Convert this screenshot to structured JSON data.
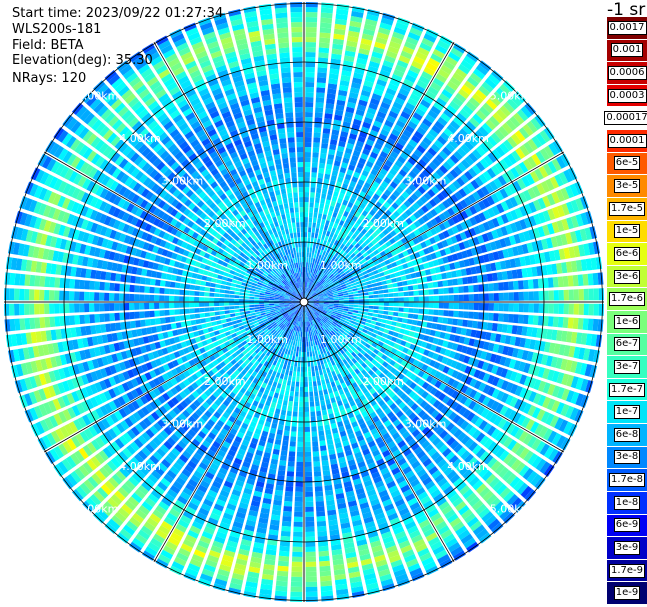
{
  "info": {
    "start_time": "Start time: 2023/09/22 01:27:34",
    "device": "WLS200s-181",
    "field": "Field: BETA",
    "elevation": "Elevation(deg): 35.30",
    "nrays": "NRays: 120"
  },
  "colorbar": {
    "unit": "-1 sr",
    "entries": [
      {
        "label": "0.0017",
        "color": "#7f0000"
      },
      {
        "label": "0.001",
        "color": "#a30000"
      },
      {
        "label": "0.0006",
        "color": "#c80000"
      },
      {
        "label": "0.0003",
        "color": "#e40000"
      },
      {
        "label": "0.00017",
        "color": "#ffffff"
      },
      {
        "label": "0.0001",
        "color": "#ff2a00"
      },
      {
        "label": "6e-5",
        "color": "#ff5a00"
      },
      {
        "label": "3e-5",
        "color": "#ff8a00"
      },
      {
        "label": "1.7e-5",
        "color": "#ffb400"
      },
      {
        "label": "1e-5",
        "color": "#ffdc00"
      },
      {
        "label": "6e-6",
        "color": "#e6ff11"
      },
      {
        "label": "3e-6",
        "color": "#c1ff36"
      },
      {
        "label": "1.7e-6",
        "color": "#9cff5a"
      },
      {
        "label": "1e-6",
        "color": "#7aff7c"
      },
      {
        "label": "6e-7",
        "color": "#55ffa1"
      },
      {
        "label": "3e-7",
        "color": "#36ffc1"
      },
      {
        "label": "1.7e-7",
        "color": "#1bffdc"
      },
      {
        "label": "1e-7",
        "color": "#00e4f8"
      },
      {
        "label": "6e-8",
        "color": "#00b4ff"
      },
      {
        "label": "3e-8",
        "color": "#0088ff"
      },
      {
        "label": "1.7e-8",
        "color": "#005cff"
      },
      {
        "label": "1e-8",
        "color": "#0030ff"
      },
      {
        "label": "6e-9",
        "color": "#0000f4"
      },
      {
        "label": "3e-9",
        "color": "#0000c8"
      },
      {
        "label": "1.7e-9",
        "color": "#00009c"
      },
      {
        "label": "1e-9",
        "color": "#000070"
      }
    ]
  },
  "chart_data": {
    "type": "heatmap",
    "subtype": "polar-ppi",
    "field": "BETA",
    "nrays": 120,
    "range_unit": "km",
    "range_max_km": 5.0,
    "ring_labels": [
      "1.00km",
      "2.00km",
      "3.00km",
      "4.00km",
      "5.00km"
    ],
    "ring_label_angles_deg": [
      45,
      135,
      225,
      315
    ],
    "radial_lines_deg": [
      0,
      30,
      60,
      90,
      120,
      150,
      180,
      210,
      240,
      270,
      300,
      330
    ],
    "radial_profile": {
      "note_ranges_km": [
        0.0,
        0.5,
        1.0,
        1.5,
        2.0,
        2.5,
        3.0,
        3.5,
        4.0,
        4.5,
        5.0
      ],
      "typical_log10_beta": [
        -7.6,
        -7.4,
        -7.0,
        -6.9,
        -6.9,
        -7.2,
        -7.4,
        -7.2,
        -6.8,
        -5.8,
        -7.4
      ]
    },
    "colormap": "jet",
    "colorbar_min": "1e-9",
    "colorbar_max": "0.0017",
    "colorbar_scale": "log"
  }
}
